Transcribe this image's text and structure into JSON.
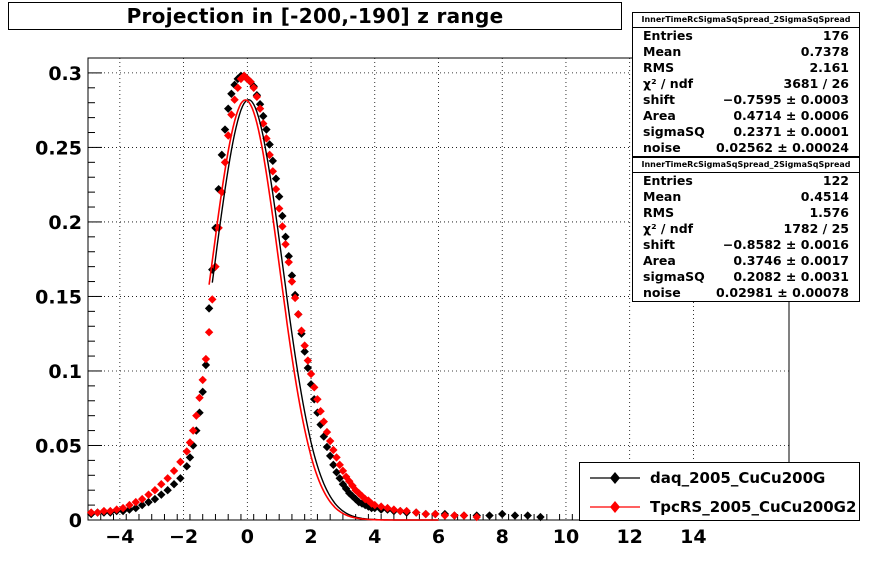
{
  "title": "Projection in [-200,-190] z range",
  "stats_boxes": [
    {
      "header": "InnerTimeRcSigmaSqSpread_2SigmaSqSpread",
      "rows": [
        {
          "label": "Entries",
          "value": "176"
        },
        {
          "label": "Mean",
          "value": "0.7378"
        },
        {
          "label": "RMS",
          "value": "2.161"
        },
        {
          "label": "χ² / ndf",
          "value": "3681 / 26"
        },
        {
          "label": "shift",
          "value": "−0.7595 ± 0.0003"
        },
        {
          "label": "Area",
          "value": "0.4714 ± 0.0006"
        },
        {
          "label": "sigmaSQ",
          "value": "0.2371 ± 0.0001"
        },
        {
          "label": "noise",
          "value": "0.02562 ± 0.00024"
        }
      ]
    },
    {
      "header": "InnerTimeRcSigmaSqSpread_2SigmaSqSpread",
      "rows": [
        {
          "label": "Entries",
          "value": "122"
        },
        {
          "label": "Mean",
          "value": "0.4514"
        },
        {
          "label": "RMS",
          "value": "1.576"
        },
        {
          "label": "χ² / ndf",
          "value": "1782 / 25"
        },
        {
          "label": "shift",
          "value": "−0.8582 ± 0.0016"
        },
        {
          "label": "Area",
          "value": "0.3746 ± 0.0017"
        },
        {
          "label": "sigmaSQ",
          "value": "0.2082 ± 0.0031"
        },
        {
          "label": "noise",
          "value": "0.02981 ± 0.00078"
        }
      ]
    }
  ],
  "legend": [
    {
      "label": "daq_2005_CuCu200G",
      "color": "#000000"
    },
    {
      "label": "TpcRS_2005_CuCu200G2",
      "color": "#ff0000"
    }
  ],
  "chart_data": {
    "type": "scatter",
    "title": "Projection in [-200,-190] z range",
    "xlim": [
      -5,
      17
    ],
    "ylim": [
      0,
      0.31
    ],
    "x_tick_labels": [
      "−4",
      "−2",
      "0",
      "2",
      "4",
      "6",
      "8",
      "10",
      "12",
      "14"
    ],
    "x_tick_values": [
      -4,
      -2,
      0,
      2,
      4,
      6,
      8,
      10,
      12,
      14
    ],
    "y_tick_labels": [
      "0",
      "0.05",
      "0.1",
      "0.15",
      "0.2",
      "0.25",
      "0.3"
    ],
    "y_tick_values": [
      0,
      0.05,
      0.1,
      0.15,
      0.2,
      0.25,
      0.3
    ],
    "grid": true,
    "legend_position": "bottom-right",
    "series": [
      {
        "name": "daq_2005_CuCu200G",
        "color": "#000000",
        "marker": "diamond",
        "x": [
          -4.9,
          -4.7,
          -4.5,
          -4.3,
          -4.1,
          -3.9,
          -3.7,
          -3.5,
          -3.3,
          -3.1,
          -2.9,
          -2.7,
          -2.5,
          -2.3,
          -2.1,
          -1.9,
          -1.8,
          -1.7,
          -1.6,
          -1.5,
          -1.4,
          -1.3,
          -1.2,
          -1.1,
          -1.0,
          -0.9,
          -0.8,
          -0.7,
          -0.6,
          -0.5,
          -0.4,
          -0.3,
          -0.2,
          -0.1,
          0.0,
          0.1,
          0.2,
          0.3,
          0.4,
          0.5,
          0.6,
          0.7,
          0.8,
          0.9,
          1.0,
          1.1,
          1.2,
          1.3,
          1.4,
          1.5,
          1.6,
          1.7,
          1.8,
          1.9,
          2.0,
          2.1,
          2.2,
          2.3,
          2.4,
          2.5,
          2.6,
          2.7,
          2.8,
          2.9,
          3.0,
          3.1,
          3.2,
          3.3,
          3.4,
          3.5,
          3.6,
          3.7,
          3.8,
          3.9,
          4.0,
          4.2,
          4.4,
          4.6,
          4.8,
          5.0,
          5.3,
          5.6,
          5.9,
          6.2,
          6.5,
          6.8,
          7.2,
          7.6,
          8.0,
          8.4,
          8.8,
          9.2
        ],
        "values": [
          0.004,
          0.005,
          0.005,
          0.005,
          0.006,
          0.006,
          0.007,
          0.008,
          0.01,
          0.012,
          0.014,
          0.017,
          0.02,
          0.024,
          0.028,
          0.036,
          0.042,
          0.05,
          0.06,
          0.072,
          0.086,
          0.104,
          0.142,
          0.168,
          0.196,
          0.222,
          0.245,
          0.262,
          0.276,
          0.286,
          0.292,
          0.296,
          0.298,
          0.298,
          0.296,
          0.294,
          0.291,
          0.285,
          0.279,
          0.271,
          0.262,
          0.252,
          0.241,
          0.229,
          0.217,
          0.204,
          0.19,
          0.177,
          0.164,
          0.151,
          0.138,
          0.125,
          0.113,
          0.102,
          0.091,
          0.081,
          0.072,
          0.064,
          0.056,
          0.049,
          0.043,
          0.037,
          0.032,
          0.028,
          0.024,
          0.021,
          0.018,
          0.016,
          0.014,
          0.012,
          0.011,
          0.01,
          0.009,
          0.008,
          0.008,
          0.007,
          0.007,
          0.006,
          0.006,
          0.005,
          0.005,
          0.004,
          0.004,
          0.004,
          0.003,
          0.003,
          0.003,
          0.003,
          0.004,
          0.003,
          0.003,
          0.002
        ]
      },
      {
        "name": "TpcRS_2005_CuCu200G2",
        "color": "#ff0000",
        "marker": "diamond",
        "x": [
          -4.9,
          -4.7,
          -4.5,
          -4.3,
          -4.1,
          -3.9,
          -3.7,
          -3.5,
          -3.3,
          -3.1,
          -2.9,
          -2.7,
          -2.5,
          -2.3,
          -2.1,
          -1.9,
          -1.8,
          -1.7,
          -1.6,
          -1.5,
          -1.4,
          -1.3,
          -1.2,
          -1.1,
          -1.0,
          -0.9,
          -0.8,
          -0.7,
          -0.6,
          -0.5,
          -0.4,
          -0.3,
          -0.2,
          -0.1,
          0.0,
          0.1,
          0.2,
          0.3,
          0.4,
          0.5,
          0.6,
          0.7,
          0.8,
          0.9,
          1.0,
          1.1,
          1.2,
          1.3,
          1.4,
          1.5,
          1.6,
          1.7,
          1.8,
          1.9,
          2.0,
          2.1,
          2.2,
          2.3,
          2.4,
          2.5,
          2.6,
          2.7,
          2.8,
          2.9,
          3.0,
          3.1,
          3.2,
          3.3,
          3.4,
          3.5,
          3.6,
          3.7,
          3.8,
          3.9,
          4.0,
          4.2,
          4.4,
          4.6,
          4.8,
          5.0,
          5.3,
          5.6,
          5.9,
          6.2,
          6.5,
          6.8,
          7.2
        ],
        "values": [
          0.005,
          0.005,
          0.006,
          0.006,
          0.007,
          0.008,
          0.01,
          0.012,
          0.014,
          0.017,
          0.02,
          0.024,
          0.028,
          0.033,
          0.039,
          0.046,
          0.052,
          0.06,
          0.07,
          0.082,
          0.094,
          0.108,
          0.126,
          0.148,
          0.17,
          0.196,
          0.22,
          0.24,
          0.258,
          0.272,
          0.282,
          0.29,
          0.296,
          0.298,
          0.296,
          0.294,
          0.29,
          0.284,
          0.276,
          0.266,
          0.256,
          0.245,
          0.234,
          0.222,
          0.209,
          0.197,
          0.185,
          0.173,
          0.16,
          0.149,
          0.138,
          0.127,
          0.117,
          0.107,
          0.098,
          0.089,
          0.081,
          0.073,
          0.066,
          0.059,
          0.053,
          0.047,
          0.042,
          0.037,
          0.033,
          0.029,
          0.026,
          0.023,
          0.02,
          0.018,
          0.016,
          0.014,
          0.013,
          0.011,
          0.01,
          0.009,
          0.008,
          0.007,
          0.006,
          0.006,
          0.005,
          0.004,
          0.004,
          0.003,
          0.003,
          0.003,
          0.002
        ]
      }
    ]
  }
}
